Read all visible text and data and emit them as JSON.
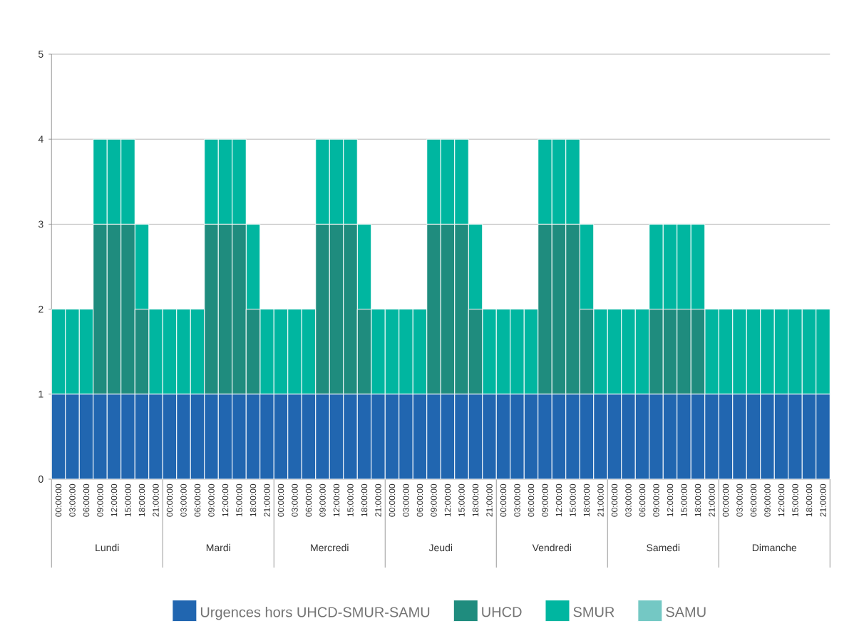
{
  "chart_data": {
    "type": "bar",
    "stacked": true,
    "categories": [
      "00:00:00",
      "03:00:00",
      "06:00:00",
      "09:00:00",
      "12:00:00",
      "15:00:00",
      "18:00:00",
      "21:00:00",
      "00:00:00",
      "03:00:00",
      "06:00:00",
      "09:00:00",
      "12:00:00",
      "15:00:00",
      "18:00:00",
      "21:00:00",
      "00:00:00",
      "03:00:00",
      "06:00:00",
      "09:00:00",
      "12:00:00",
      "15:00:00",
      "18:00:00",
      "21:00:00",
      "00:00:00",
      "03:00:00",
      "06:00:00",
      "09:00:00",
      "12:00:00",
      "15:00:00",
      "18:00:00",
      "21:00:00",
      "00:00:00",
      "03:00:00",
      "06:00:00",
      "09:00:00",
      "12:00:00",
      "15:00:00",
      "18:00:00",
      "21:00:00",
      "00:00:00",
      "03:00:00",
      "06:00:00",
      "09:00:00",
      "12:00:00",
      "15:00:00",
      "18:00:00",
      "21:00:00",
      "00:00:00",
      "03:00:00",
      "06:00:00",
      "09:00:00",
      "12:00:00",
      "15:00:00",
      "18:00:00",
      "21:00:00"
    ],
    "series": [
      {
        "name": "Urgences hors UHCD-SMUR-SAMU",
        "color": "#2166b0",
        "values": [
          1,
          1,
          1,
          1,
          1,
          1,
          1,
          1,
          1,
          1,
          1,
          1,
          1,
          1,
          1,
          1,
          1,
          1,
          1,
          1,
          1,
          1,
          1,
          1,
          1,
          1,
          1,
          1,
          1,
          1,
          1,
          1,
          1,
          1,
          1,
          1,
          1,
          1,
          1,
          1,
          1,
          1,
          1,
          1,
          1,
          1,
          1,
          1,
          1,
          1,
          1,
          1,
          1,
          1,
          1,
          1
        ]
      },
      {
        "name": "UHCD",
        "color": "#1f8c7e",
        "values": [
          0,
          0,
          0,
          2,
          2,
          2,
          1,
          0,
          0,
          0,
          0,
          2,
          2,
          2,
          1,
          0,
          0,
          0,
          0,
          2,
          2,
          2,
          1,
          0,
          0,
          0,
          0,
          2,
          2,
          2,
          1,
          0,
          0,
          0,
          0,
          2,
          2,
          2,
          1,
          0,
          0,
          0,
          0,
          1,
          1,
          1,
          1,
          0,
          0,
          0,
          0,
          0,
          0,
          0,
          0,
          0
        ]
      },
      {
        "name": "SMUR",
        "color": "#00b6a0",
        "values": [
          1,
          1,
          1,
          1,
          1,
          1,
          1,
          1,
          1,
          1,
          1,
          1,
          1,
          1,
          1,
          1,
          1,
          1,
          1,
          1,
          1,
          1,
          1,
          1,
          1,
          1,
          1,
          1,
          1,
          1,
          1,
          1,
          1,
          1,
          1,
          1,
          1,
          1,
          1,
          1,
          1,
          1,
          1,
          1,
          1,
          1,
          1,
          1,
          1,
          1,
          1,
          1,
          1,
          1,
          1,
          1
        ]
      },
      {
        "name": "SAMU",
        "color": "#74c8c4",
        "values": [
          0,
          0,
          0,
          0,
          0,
          0,
          0,
          0,
          0,
          0,
          0,
          0,
          0,
          0,
          0,
          0,
          0,
          0,
          0,
          0,
          0,
          0,
          0,
          0,
          0,
          0,
          0,
          0,
          0,
          0,
          0,
          0,
          0,
          0,
          0,
          0,
          0,
          0,
          0,
          0,
          0,
          0,
          0,
          0,
          0,
          0,
          0,
          0,
          0,
          0,
          0,
          0,
          0,
          0,
          0,
          0
        ]
      }
    ],
    "ylim": [
      0,
      5
    ],
    "yticks": [
      0,
      1,
      2,
      3,
      4,
      5
    ],
    "grid": "y",
    "legend": "bottom",
    "annotations": [
      "Lundi",
      "Mardi",
      "Mercredi",
      "Jeudi",
      "Vendredi",
      "Samedi",
      "Dimanche"
    ]
  }
}
